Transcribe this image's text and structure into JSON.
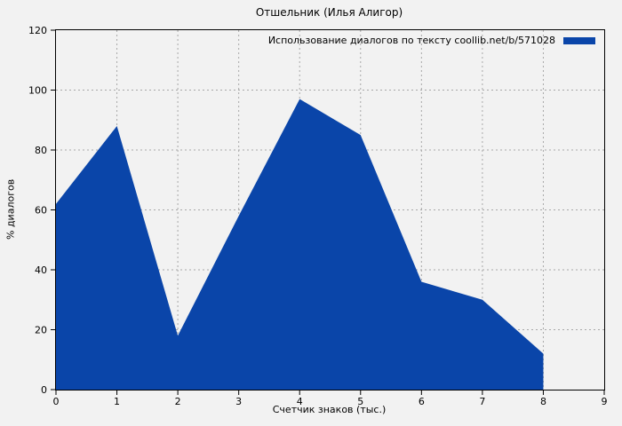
{
  "title": "Отшельник (Илья Алигор)",
  "legend": {
    "label": "Использование диалогов по тексту coollib.net/b/571028"
  },
  "chart_data": {
    "type": "area",
    "title": "Отшельник (Илья Алигор)",
    "series_name": "Использование диалогов по тексту coollib.net/b/571028",
    "xlabel": "Счетчик знаков (тыс.)",
    "ylabel": "% диалогов",
    "x": [
      0,
      1,
      2,
      3,
      4,
      5,
      6,
      7,
      8
    ],
    "values": [
      62,
      88,
      18,
      58,
      97,
      85,
      36,
      30,
      12
    ],
    "baseline": 0,
    "xlim": [
      0,
      9
    ],
    "ylim": [
      0,
      120
    ],
    "xticks": [
      0,
      1,
      2,
      3,
      4,
      5,
      6,
      7,
      8,
      9
    ],
    "yticks": [
      0,
      20,
      40,
      60,
      80,
      100,
      120
    ],
    "grid": true,
    "legend_position": "top-right",
    "fill_color": "#0a45a9",
    "background_color": "#f2f2f2",
    "grid_color": "#a8a8a8",
    "axis_color": "#000000"
  }
}
